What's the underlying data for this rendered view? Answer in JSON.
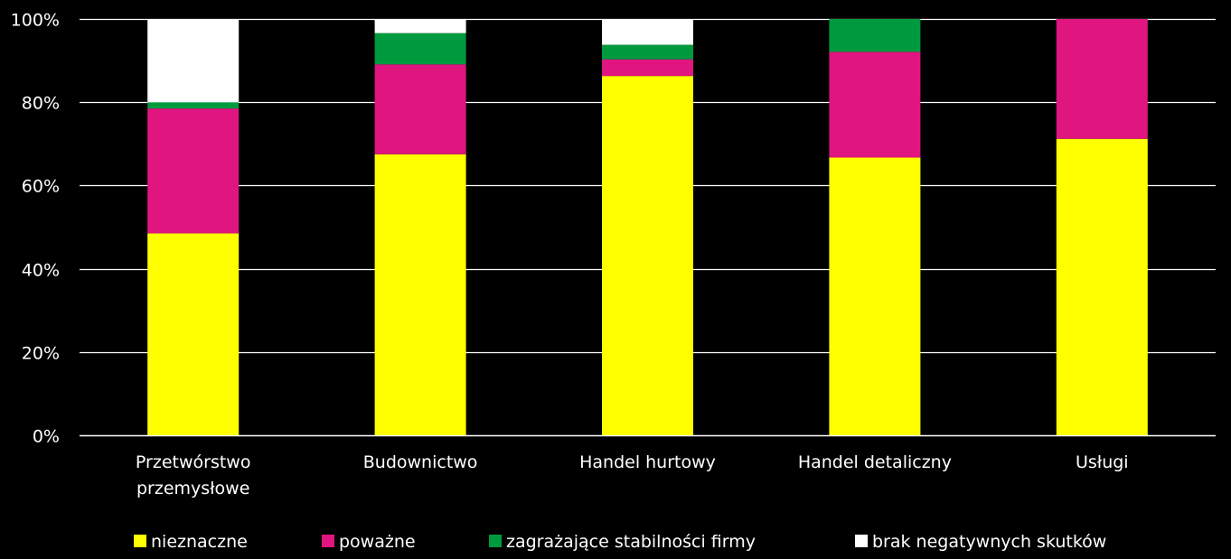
{
  "chart_data": {
    "type": "bar",
    "stacked": true,
    "percent": true,
    "categories": [
      [
        "Przetwórstwo",
        "przemysłowe"
      ],
      [
        "Budownictwo"
      ],
      [
        "Handel hurtowy"
      ],
      [
        "Handel detaliczny"
      ],
      [
        "Usługi"
      ]
    ],
    "series": [
      {
        "name": "nieznaczne",
        "color": "#ffff00",
        "values": [
          48.5,
          67.5,
          86.3,
          66.7,
          71.2
        ]
      },
      {
        "name": "poważne",
        "color": "#e0157f",
        "values": [
          30.0,
          21.6,
          4.0,
          25.4,
          28.8
        ]
      },
      {
        "name": "zagrażające stabilności firmy",
        "color": "#009a3e",
        "values": [
          1.5,
          7.5,
          3.5,
          7.9,
          0.0
        ]
      },
      {
        "name": "brak negatywnych skutków",
        "color": "#ffffff",
        "values": [
          20.0,
          3.4,
          6.2,
          0.0,
          0.0
        ]
      }
    ],
    "y_ticks": [
      "0%",
      "20%",
      "40%",
      "60%",
      "80%",
      "100%"
    ],
    "ylim": [
      0,
      100
    ],
    "grid": true,
    "legend_position": "bottom",
    "title": "",
    "xlabel": "",
    "ylabel": ""
  }
}
